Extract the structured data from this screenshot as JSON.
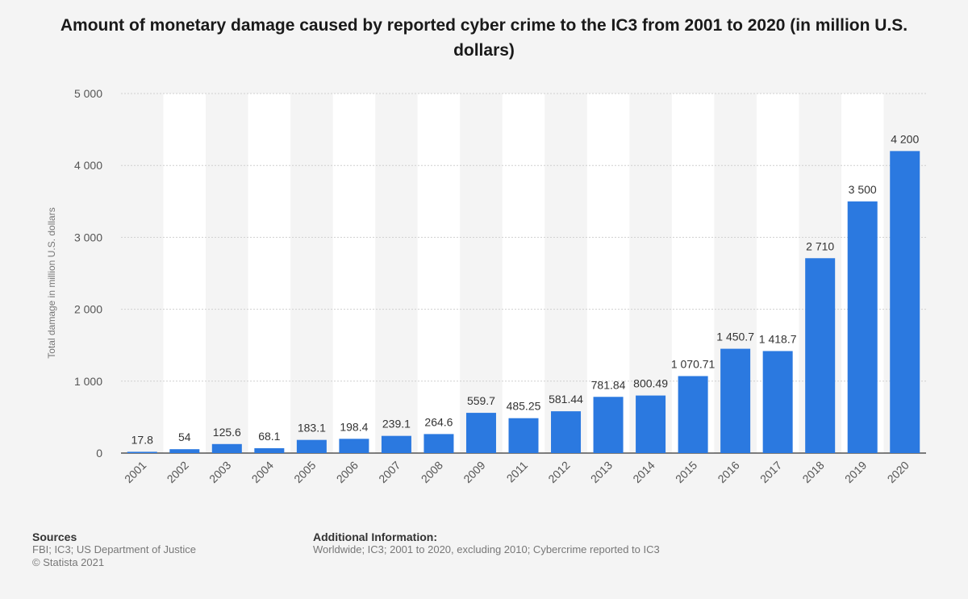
{
  "chart_data": {
    "type": "bar",
    "title": "Amount of monetary damage caused by reported cyber crime to the IC3 from 2001 to 2020 (in million U.S. dollars)",
    "ylabel": "Total damage in million U.S. dollars",
    "xlabel": "",
    "categories": [
      "2001",
      "2002",
      "2003",
      "2004",
      "2005",
      "2006",
      "2007",
      "2008",
      "2009",
      "2011",
      "2012",
      "2013",
      "2014",
      "2015",
      "2016",
      "2017",
      "2018",
      "2019",
      "2020"
    ],
    "values": [
      17.8,
      54,
      125.6,
      68.1,
      183.1,
      198.4,
      239.1,
      264.6,
      559.7,
      485.25,
      581.44,
      781.84,
      800.49,
      1070.71,
      1450.7,
      1418.7,
      2710,
      3500,
      4200
    ],
    "value_labels": [
      "17.8",
      "54",
      "125.6",
      "68.1",
      "183.1",
      "198.4",
      "239.1",
      "264.6",
      "559.7",
      "485.25",
      "581.44",
      "781.84",
      "800.49",
      "1 070.71",
      "1 450.7",
      "1 418.7",
      "2 710",
      "3 500",
      "4 200"
    ],
    "ylim": [
      0,
      5000
    ],
    "y_ticks": [
      0,
      1000,
      2000,
      3000,
      4000,
      5000
    ],
    "y_tick_labels": [
      "0",
      "1 000",
      "2 000",
      "3 000",
      "4 000",
      "5 000"
    ],
    "grid": true,
    "bar_color": "#2b79e0"
  },
  "footer": {
    "sources_heading": "Sources",
    "sources_line1": "FBI; IC3; US Department of Justice",
    "sources_line2": "© Statista 2021",
    "additional_heading": "Additional Information:",
    "additional_text": "Worldwide; IC3; 2001 to 2020, excluding 2010; Cybercrime reported to IC3"
  }
}
